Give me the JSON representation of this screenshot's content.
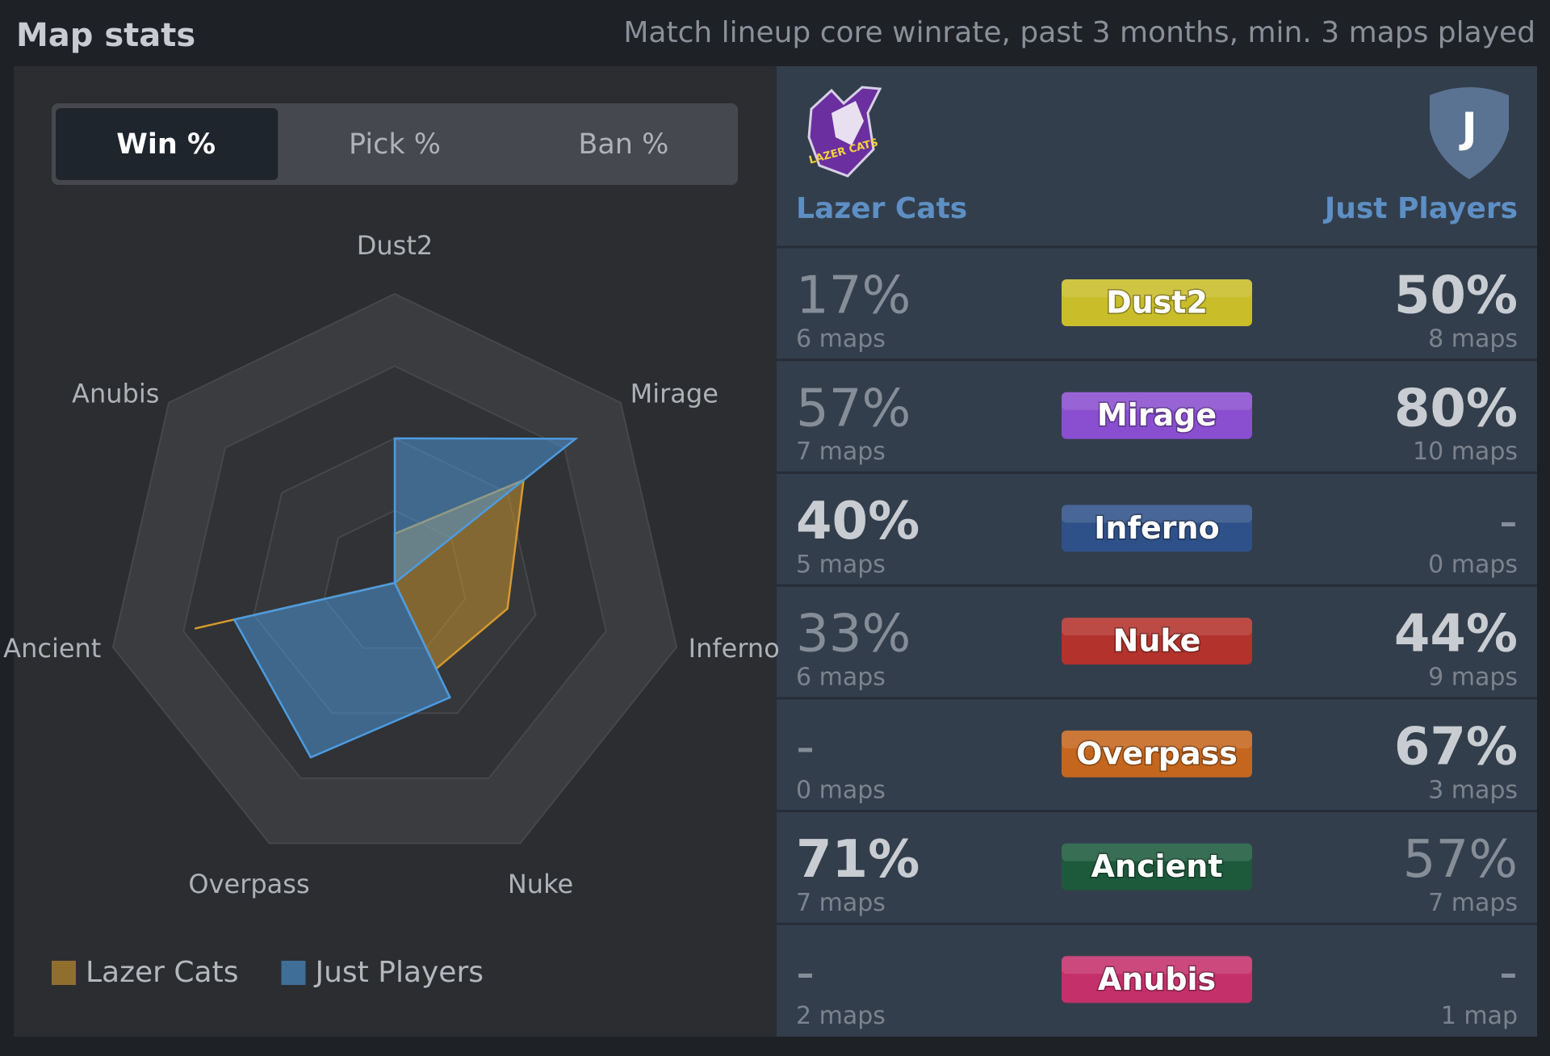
{
  "header": {
    "title": "Map stats",
    "subtitle": "Match lineup core winrate, past 3 months, min. 3 maps played"
  },
  "tabs": [
    {
      "label": "Win %",
      "active": true
    },
    {
      "label": "Pick %",
      "active": false
    },
    {
      "label": "Ban %",
      "active": false
    }
  ],
  "chart_data": {
    "type": "radar",
    "categories": [
      "Dust2",
      "Mirage",
      "Inferno",
      "Nuke",
      "Overpass",
      "Ancient",
      "Anubis"
    ],
    "rlim": [
      0,
      100
    ],
    "rticks": [
      25,
      50,
      75,
      100
    ],
    "series": [
      {
        "name": "Lazer Cats",
        "color": "#d39a2c",
        "values": [
          17,
          57,
          40,
          33,
          0,
          71,
          0
        ]
      },
      {
        "name": "Just Players",
        "color": "#4d9be0",
        "values": [
          50,
          80,
          0,
          44,
          67,
          57,
          0
        ]
      }
    ]
  },
  "teams": {
    "left": {
      "name": "Lazer Cats",
      "logo_text": "LAZER CATS"
    },
    "right": {
      "name": "Just Players",
      "logo_text": "J"
    }
  },
  "table": {
    "rows": [
      {
        "map": "Dust2",
        "color": "#c9be2a",
        "left_pct": "17%",
        "left_maps": "6 maps",
        "right_pct": "50%",
        "right_maps": "8 maps",
        "winner": "right"
      },
      {
        "map": "Mirage",
        "color": "#8a4fd0",
        "left_pct": "57%",
        "left_maps": "7 maps",
        "right_pct": "80%",
        "right_maps": "10 maps",
        "winner": "right"
      },
      {
        "map": "Inferno",
        "color": "#2f5189",
        "left_pct": "40%",
        "left_maps": "5 maps",
        "right_pct": "-",
        "right_maps": "0 maps",
        "winner": "left"
      },
      {
        "map": "Nuke",
        "color": "#b3322c",
        "left_pct": "33%",
        "left_maps": "6 maps",
        "right_pct": "44%",
        "right_maps": "9 maps",
        "winner": "right"
      },
      {
        "map": "Overpass",
        "color": "#c4661e",
        "left_pct": "-",
        "left_maps": "0 maps",
        "right_pct": "67%",
        "right_maps": "3 maps",
        "winner": "right"
      },
      {
        "map": "Ancient",
        "color": "#1d5a3c",
        "left_pct": "71%",
        "left_maps": "7 maps",
        "right_pct": "57%",
        "right_maps": "7 maps",
        "winner": "left"
      },
      {
        "map": "Anubis",
        "color": "#c4306a",
        "left_pct": "-",
        "left_maps": "2 maps",
        "right_pct": "-",
        "right_maps": "1 map",
        "winner": null
      }
    ]
  }
}
